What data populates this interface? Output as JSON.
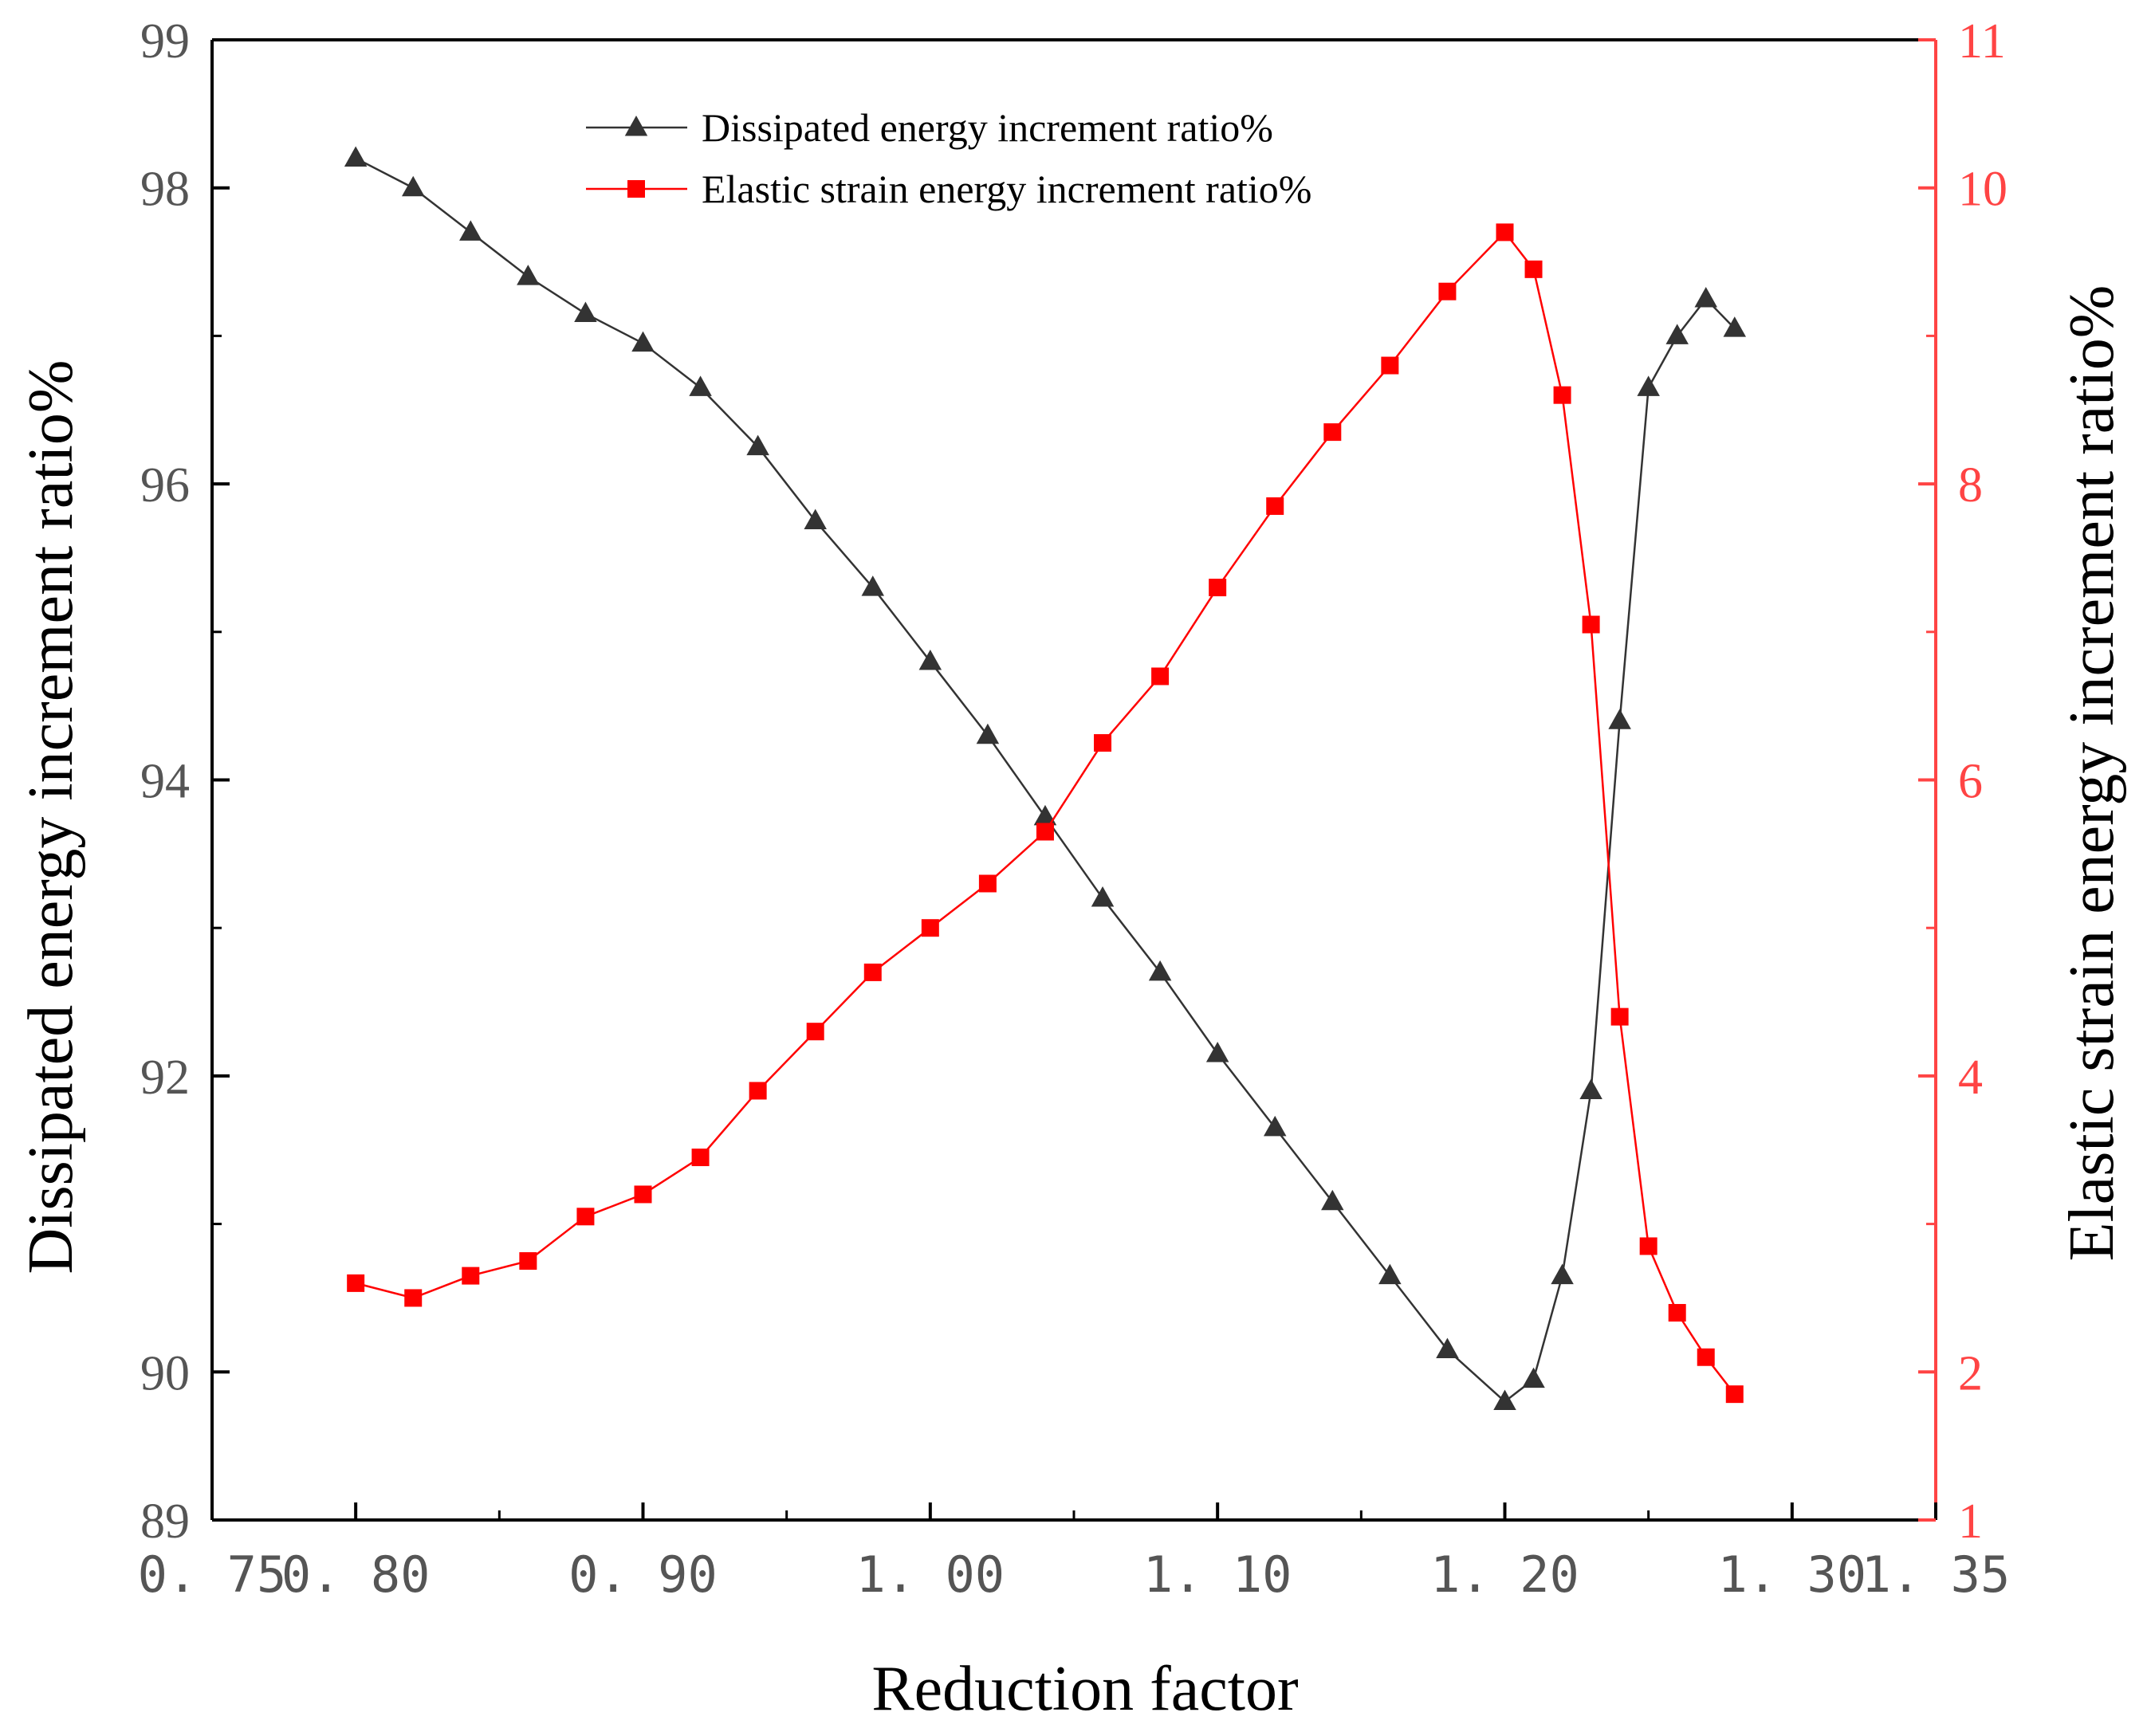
{
  "chart_data": {
    "type": "line",
    "xlabel": "Reduction factor",
    "ylabel_left": "Dissipated energy increment  ratio%",
    "ylabel_right": "Elastic strain energy increment ratio%",
    "xlim": [
      0.75,
      1.35
    ],
    "ylim_left": [
      89,
      99
    ],
    "ylim_right": [
      1,
      11
    ],
    "x_tick_labels": [
      "0. 75",
      "0. 80",
      "0. 90",
      "1. 00",
      "1. 10",
      "1. 20",
      "1. 30",
      "1. 35"
    ],
    "x_tick_values": [
      0.75,
      0.8,
      0.9,
      1.0,
      1.1,
      1.2,
      1.3,
      1.35
    ],
    "y_left_tick_labels": [
      "89",
      "90",
      "92",
      "94",
      "96",
      "98",
      "99"
    ],
    "y_left_tick_values": [
      89,
      90,
      92,
      94,
      96,
      98,
      99
    ],
    "y_right_tick_labels": [
      "1",
      "2",
      "4",
      "6",
      "8",
      "10",
      "11"
    ],
    "y_right_tick_values": [
      1,
      2,
      4,
      6,
      8,
      10,
      11
    ],
    "legend": {
      "position": "top-center"
    },
    "colors": {
      "dissipated": "#333333",
      "elastic": "#ff0000",
      "right_axis": "#ff4444",
      "axis": "#000000"
    },
    "series": [
      {
        "name": "Dissipated energy increment  ratio%",
        "axis": "left",
        "marker": "triangle",
        "color": "#333333",
        "x": [
          0.8,
          0.82,
          0.84,
          0.86,
          0.88,
          0.9,
          0.92,
          0.94,
          0.96,
          0.98,
          1.0,
          1.02,
          1.04,
          1.06,
          1.08,
          1.1,
          1.12,
          1.14,
          1.16,
          1.18,
          1.2,
          1.21,
          1.22,
          1.23,
          1.24,
          1.25,
          1.26,
          1.27,
          1.28
        ],
        "values": [
          98.2,
          98.0,
          97.7,
          97.4,
          97.15,
          96.95,
          96.65,
          96.25,
          95.75,
          95.3,
          94.8,
          94.3,
          93.75,
          93.2,
          92.7,
          92.15,
          91.65,
          91.15,
          90.65,
          90.15,
          89.8,
          89.95,
          90.65,
          91.9,
          94.4,
          96.65,
          97.0,
          97.25,
          97.05
        ]
      },
      {
        "name": "Elastic strain energy increment ratio%",
        "axis": "right",
        "marker": "square",
        "color": "#ff0000",
        "x": [
          0.8,
          0.82,
          0.84,
          0.86,
          0.88,
          0.9,
          0.92,
          0.94,
          0.96,
          0.98,
          1.0,
          1.02,
          1.04,
          1.06,
          1.08,
          1.1,
          1.12,
          1.14,
          1.16,
          1.18,
          1.2,
          1.21,
          1.22,
          1.23,
          1.24,
          1.25,
          1.26,
          1.27,
          1.28
        ],
        "values": [
          2.6,
          2.5,
          2.65,
          2.75,
          3.05,
          3.2,
          3.45,
          3.9,
          4.3,
          4.7,
          5.0,
          5.3,
          5.65,
          6.25,
          6.7,
          7.3,
          7.85,
          8.35,
          8.8,
          9.3,
          9.7,
          9.45,
          8.6,
          7.05,
          4.4,
          2.85,
          2.4,
          2.1,
          1.85
        ]
      }
    ]
  }
}
